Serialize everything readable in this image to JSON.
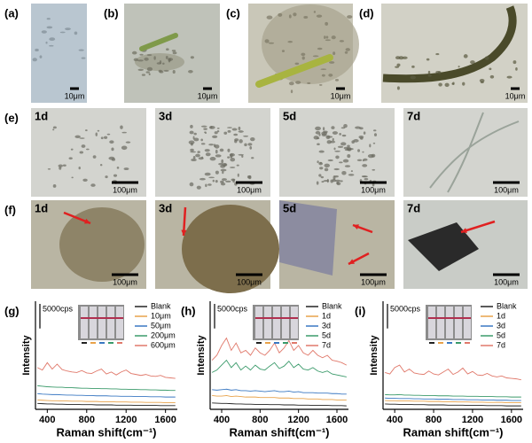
{
  "figure": {
    "top": [
      {
        "label": "(a)",
        "scale": "10μm"
      },
      {
        "label": "(b)",
        "scale": "10μm"
      },
      {
        "label": "(c)",
        "scale": "10μm"
      },
      {
        "label": "(d)",
        "scale": "10μm"
      }
    ],
    "rows": [
      {
        "label": "(e)",
        "images": [
          {
            "day": "1d",
            "scale": "100μm"
          },
          {
            "day": "3d",
            "scale": "100μm"
          },
          {
            "day": "5d",
            "scale": "100μm"
          },
          {
            "day": "7d",
            "scale": "100μm"
          }
        ]
      },
      {
        "label": "(f)",
        "images": [
          {
            "day": "1d",
            "scale": "100μm"
          },
          {
            "day": "3d",
            "scale": "100μm"
          },
          {
            "day": "5d",
            "scale": "100μm"
          },
          {
            "day": "7d",
            "scale": "100μm"
          }
        ]
      }
    ]
  },
  "chart_data": [
    {
      "type": "line",
      "label": "(g)",
      "ylabel": "Intensity",
      "xlabel": "Raman shift(cm⁻¹)",
      "scale_bar": {
        "value": 5000,
        "label": "5000cps"
      },
      "xlim": [
        280,
        1720
      ],
      "xticks": [
        400,
        800,
        1200,
        1600
      ],
      "ylim": [
        0,
        22000
      ],
      "x": [
        300,
        350,
        400,
        450,
        500,
        550,
        600,
        650,
        700,
        750,
        800,
        850,
        900,
        950,
        1000,
        1050,
        1100,
        1150,
        1200,
        1250,
        1300,
        1350,
        1400,
        1450,
        1500,
        1550,
        1600,
        1650,
        1700
      ],
      "series": [
        {
          "name": "Blank",
          "color": "#222222",
          "values": [
            1200,
            1150,
            1100,
            1100,
            1050,
            1050,
            1000,
            1000,
            1000,
            950,
            950,
            950,
            900,
            900,
            900,
            900,
            850,
            850,
            850,
            850,
            800,
            800,
            800,
            800,
            800,
            750,
            750,
            750,
            750
          ]
        },
        {
          "name": "10μm",
          "color": "#e8a24a",
          "values": [
            1900,
            1850,
            1800,
            1750,
            1750,
            1700,
            1700,
            1650,
            1650,
            1650,
            1600,
            1600,
            1600,
            1550,
            1550,
            1550,
            1500,
            1500,
            1500,
            1450,
            1450,
            1450,
            1400,
            1400,
            1400,
            1400,
            1350,
            1350,
            1350
          ]
        },
        {
          "name": "50μm",
          "color": "#3a78c2",
          "values": [
            3200,
            3100,
            3050,
            3000,
            3000,
            2950,
            2900,
            2900,
            2850,
            2850,
            2800,
            2800,
            2750,
            2750,
            2750,
            2700,
            2700,
            2650,
            2650,
            2650,
            2600,
            2600,
            2600,
            2550,
            2550,
            2550,
            2500,
            2500,
            2500
          ]
        },
        {
          "name": "200μm",
          "color": "#3a9a6a",
          "values": [
            4800,
            4700,
            4600,
            4550,
            4500,
            4500,
            4400,
            4400,
            4350,
            4300,
            4300,
            4250,
            4250,
            4200,
            4200,
            4150,
            4150,
            4100,
            4100,
            4050,
            4050,
            4000,
            4000,
            3950,
            3950,
            3900,
            3900,
            3850,
            3850
          ]
        },
        {
          "name": "600μm",
          "color": "#e0786a",
          "values": [
            8500,
            8000,
            9500,
            8200,
            9200,
            8100,
            7800,
            7600,
            7500,
            7900,
            7400,
            7300,
            7800,
            8200,
            7200,
            7600,
            7000,
            7600,
            8000,
            7300,
            7100,
            6900,
            7100,
            6800,
            6700,
            6900,
            6500,
            6400,
            6300
          ]
        }
      ]
    },
    {
      "type": "line",
      "label": "(h)",
      "ylabel": "Intensity",
      "xlabel": "Raman shift(cm⁻¹)",
      "scale_bar": {
        "value": 5000,
        "label": "5000cps"
      },
      "xlim": [
        280,
        1720
      ],
      "xticks": [
        400,
        800,
        1200,
        1600
      ],
      "ylim": [
        0,
        22000
      ],
      "x": [
        300,
        350,
        400,
        450,
        500,
        550,
        600,
        650,
        700,
        750,
        800,
        850,
        900,
        950,
        1000,
        1050,
        1100,
        1150,
        1200,
        1250,
        1300,
        1350,
        1400,
        1450,
        1500,
        1550,
        1600,
        1650,
        1700
      ],
      "series": [
        {
          "name": "Blank",
          "color": "#222222",
          "values": [
            1300,
            1250,
            1200,
            1200,
            1150,
            1100,
            1100,
            1050,
            1050,
            1000,
            1000,
            1000,
            950,
            950,
            950,
            900,
            900,
            900,
            850,
            850,
            850,
            800,
            800,
            800,
            800,
            750,
            750,
            750,
            700
          ]
        },
        {
          "name": "1d",
          "color": "#e8a24a",
          "values": [
            2800,
            2700,
            2700,
            2800,
            2600,
            2700,
            2600,
            2500,
            2500,
            2500,
            2400,
            2400,
            2400,
            2400,
            2300,
            2300,
            2300,
            2200,
            2200,
            2200,
            2100,
            2100,
            2100,
            2000,
            2000,
            2000,
            1900,
            1900,
            1900
          ]
        },
        {
          "name": "3d",
          "color": "#3a78c2",
          "values": [
            4000,
            3900,
            4000,
            4100,
            3900,
            4000,
            3800,
            3800,
            3700,
            3800,
            3700,
            3600,
            3700,
            3800,
            3600,
            3600,
            3700,
            3500,
            3600,
            3400,
            3400,
            3400,
            3300,
            3300,
            3300,
            3200,
            3200,
            3100,
            3100
          ]
        },
        {
          "name": "5d",
          "color": "#3a9a6a",
          "values": [
            7500,
            8000,
            9000,
            10000,
            8500,
            9500,
            8000,
            8800,
            8000,
            9000,
            8200,
            8000,
            8800,
            9500,
            8300,
            8800,
            9800,
            8500,
            9200,
            8200,
            8000,
            8500,
            7800,
            7500,
            7800,
            7200,
            7000,
            6800,
            6600
          ]
        },
        {
          "name": "7d",
          "color": "#e0786a",
          "values": [
            10000,
            11000,
            13000,
            14500,
            12000,
            13500,
            11500,
            12000,
            11000,
            12500,
            11500,
            11000,
            12000,
            13500,
            11500,
            12500,
            14000,
            12000,
            13000,
            11500,
            11000,
            12000,
            11000,
            10500,
            11000,
            10000,
            9800,
            9500,
            9000
          ]
        }
      ]
    },
    {
      "type": "line",
      "label": "(i)",
      "ylabel": "Intensity",
      "xlabel": "Raman shift(cm⁻¹)",
      "scale_bar": {
        "value": 5000,
        "label": "5000cps"
      },
      "xlim": [
        280,
        1720
      ],
      "xticks": [
        400,
        800,
        1200,
        1600
      ],
      "ylim": [
        0,
        22000
      ],
      "x": [
        300,
        350,
        400,
        450,
        500,
        550,
        600,
        650,
        700,
        750,
        800,
        850,
        900,
        950,
        1000,
        1050,
        1100,
        1150,
        1200,
        1250,
        1300,
        1350,
        1400,
        1450,
        1500,
        1550,
        1600,
        1650,
        1700
      ],
      "series": [
        {
          "name": "Blank",
          "color": "#222222",
          "values": [
            1100,
            1050,
            1050,
            1000,
            1000,
            1000,
            950,
            950,
            950,
            900,
            900,
            900,
            900,
            850,
            850,
            850,
            850,
            800,
            800,
            800,
            800,
            750,
            750,
            750,
            750,
            700,
            700,
            700,
            700
          ]
        },
        {
          "name": "1d",
          "color": "#e8a24a",
          "values": [
            1800,
            1750,
            1750,
            1700,
            1700,
            1700,
            1650,
            1650,
            1650,
            1600,
            1600,
            1600,
            1550,
            1550,
            1550,
            1500,
            1500,
            1500,
            1450,
            1450,
            1450,
            1400,
            1400,
            1400,
            1400,
            1350,
            1350,
            1350,
            1350
          ]
        },
        {
          "name": "3d",
          "color": "#3a78c2",
          "values": [
            2300,
            2250,
            2250,
            2200,
            2200,
            2200,
            2150,
            2150,
            2100,
            2100,
            2100,
            2050,
            2050,
            2050,
            2000,
            2000,
            2000,
            1950,
            1950,
            1950,
            1900,
            1900,
            1900,
            1850,
            1850,
            1850,
            1800,
            1800,
            1800
          ]
        },
        {
          "name": "5d",
          "color": "#3a9a6a",
          "values": [
            3000,
            2950,
            2950,
            3000,
            2900,
            2900,
            2850,
            2850,
            2800,
            2800,
            2800,
            2750,
            2750,
            2750,
            2700,
            2700,
            2700,
            2650,
            2650,
            2650,
            2600,
            2600,
            2600,
            2550,
            2550,
            2550,
            2500,
            2500,
            2500
          ]
        },
        {
          "name": "7d",
          "color": "#e0786a",
          "values": [
            7500,
            7200,
            8500,
            9000,
            7600,
            8200,
            7400,
            7200,
            7100,
            7800,
            7200,
            7000,
            7600,
            8200,
            7100,
            7600,
            8400,
            7200,
            7700,
            7000,
            6900,
            7300,
            6800,
            6600,
            6800,
            6400,
            6300,
            6200,
            6000
          ]
        }
      ]
    }
  ]
}
